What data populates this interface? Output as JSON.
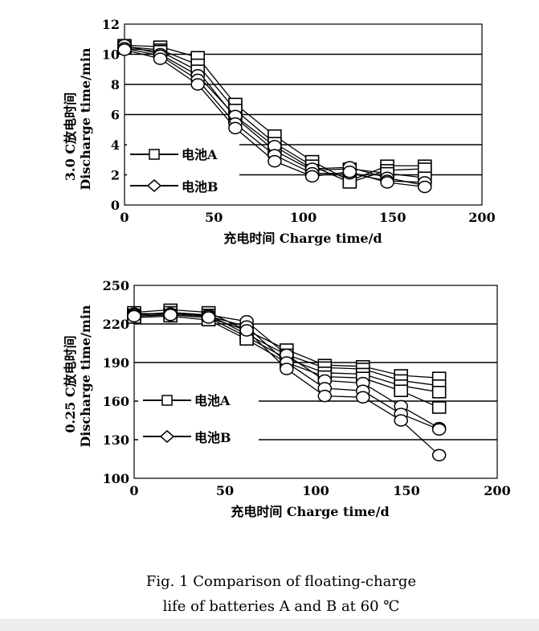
{
  "caption": {
    "line1": "Fig. 1   Comparison of floating-charge",
    "line2": "life of batteries A and B at 60 ℃"
  },
  "chart_data": [
    {
      "type": "line",
      "xlabel": "充电时间 Charge time/d",
      "ylabel_top": "3.0 C放电时间",
      "ylabel_bottom": "Discharge time/min",
      "xlim": [
        0,
        200
      ],
      "ylim": [
        0,
        12
      ],
      "xticks": [
        "0",
        "50",
        "100",
        "150",
        "200"
      ],
      "yticks": [
        "0",
        "2",
        "4",
        "6",
        "8",
        "10",
        "12"
      ],
      "grid": "horizontal",
      "legend": [
        {
          "label": "电池A",
          "marker": "square"
        },
        {
          "label": "电池B",
          "marker": "diamond"
        }
      ],
      "x": [
        0,
        20,
        41,
        62,
        84,
        105,
        126,
        147,
        168
      ],
      "series": [
        {
          "marker": "square",
          "values": [
            10.6,
            10.5,
            9.8,
            6.7,
            4.6,
            2.9,
            1.6,
            2.6,
            2.6
          ]
        },
        {
          "marker": "square",
          "values": [
            10.5,
            10.3,
            9.3,
            6.3,
            4.1,
            2.6,
            1.5,
            2.3,
            2.4
          ]
        },
        {
          "marker": "square",
          "values": [
            10.4,
            10.2,
            8.9,
            5.8,
            3.6,
            2.3,
            2.4,
            2.1,
            1.8
          ]
        },
        {
          "marker": "diamond",
          "values": [
            10.6,
            10.0,
            8.6,
            5.9,
            3.9,
            2.4,
            2.5,
            1.8,
            1.3
          ]
        },
        {
          "marker": "diamond",
          "values": [
            10.4,
            9.9,
            8.3,
            5.4,
            3.3,
            2.1,
            2.1,
            1.6,
            1.5
          ]
        },
        {
          "marker": "diamond",
          "values": [
            10.3,
            9.7,
            8.0,
            5.1,
            2.9,
            1.9,
            2.2,
            1.5,
            1.2
          ]
        }
      ]
    },
    {
      "type": "line",
      "xlabel": "充电时间 Charge time/d",
      "ylabel_top": "0.25 C放电时间",
      "ylabel_bottom": "Discharge time/min",
      "xlim": [
        0,
        200
      ],
      "ylim": [
        100,
        250
      ],
      "xticks": [
        "0",
        "50",
        "100",
        "150",
        "200"
      ],
      "yticks": [
        "100",
        "130",
        "160",
        "190",
        "220",
        "250"
      ],
      "grid": "horizontal",
      "legend": [
        {
          "label": "电池A",
          "marker": "square"
        },
        {
          "label": "电池B",
          "marker": "diamond"
        }
      ],
      "x": [
        0,
        20,
        41,
        62,
        84,
        105,
        126,
        147,
        168
      ],
      "series": [
        {
          "marker": "square",
          "values": [
            229,
            231,
            229,
            215,
            200,
            188,
            187,
            180,
            178
          ]
        },
        {
          "marker": "square",
          "values": [
            227,
            229,
            227,
            212,
            196,
            186,
            185,
            176,
            172
          ]
        },
        {
          "marker": "square",
          "values": [
            226,
            227,
            225,
            210,
            193,
            182,
            181,
            172,
            167
          ]
        },
        {
          "marker": "square",
          "values": [
            225,
            226,
            223,
            208,
            190,
            179,
            178,
            168,
            155
          ]
        },
        {
          "marker": "diamond",
          "values": [
            228,
            228,
            227,
            222,
            196,
            176,
            174,
            156,
            139
          ]
        },
        {
          "marker": "diamond",
          "values": [
            227,
            228,
            226,
            218,
            190,
            170,
            168,
            150,
            138
          ]
        },
        {
          "marker": "diamond",
          "values": [
            226,
            227,
            225,
            215,
            185,
            164,
            163,
            145,
            118
          ]
        }
      ]
    }
  ]
}
